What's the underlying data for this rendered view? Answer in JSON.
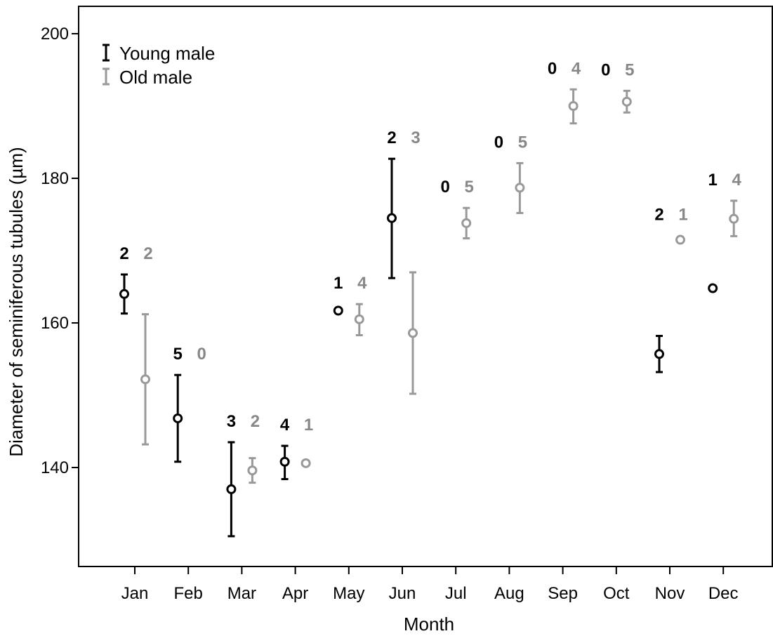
{
  "chart_data": {
    "type": "scatter",
    "title": "",
    "xlabel": "Month",
    "ylabel": "Diameter of seminiferous tubules (µm)",
    "ylim": [
      123,
      204
    ],
    "yticks": [
      140,
      160,
      180,
      200
    ],
    "grid": false,
    "legend_position": "top-left",
    "categories": [
      "Jan",
      "Feb",
      "Mar",
      "Apr",
      "May",
      "Jun",
      "Jul",
      "Aug",
      "Sep",
      "Oct",
      "Nov",
      "Dec"
    ],
    "series": [
      {
        "name": "Young male",
        "color": "#000000",
        "values": [
          164.0,
          146.8,
          137.0,
          140.8,
          161.7,
          174.5,
          null,
          null,
          null,
          null,
          155.7,
          164.8
        ],
        "err_low": [
          161.3,
          140.8,
          130.5,
          138.4,
          null,
          166.2,
          null,
          null,
          null,
          null,
          153.2,
          null
        ],
        "err_high": [
          166.7,
          152.8,
          143.5,
          143.0,
          null,
          182.7,
          null,
          null,
          null,
          null,
          158.2,
          null
        ],
        "n": [
          "2",
          "5",
          "3",
          "4",
          "1",
          "2",
          "0",
          "0",
          "0",
          "0",
          "2",
          "1"
        ]
      },
      {
        "name": "Old male",
        "color": "#999999",
        "values": [
          152.2,
          null,
          139.6,
          140.6,
          160.5,
          158.6,
          173.8,
          178.7,
          190.0,
          190.6,
          171.5,
          174.4
        ],
        "err_low": [
          143.2,
          null,
          137.9,
          null,
          158.3,
          150.2,
          171.7,
          175.2,
          187.6,
          189.1,
          null,
          172.0
        ],
        "err_high": [
          161.2,
          null,
          141.3,
          null,
          162.6,
          167.0,
          175.9,
          182.1,
          192.3,
          192.1,
          null,
          176.9
        ],
        "n": [
          "2",
          "0",
          "2",
          "1",
          "4",
          "3",
          "5",
          "5",
          "4",
          "5",
          "1",
          "4"
        ]
      }
    ]
  }
}
